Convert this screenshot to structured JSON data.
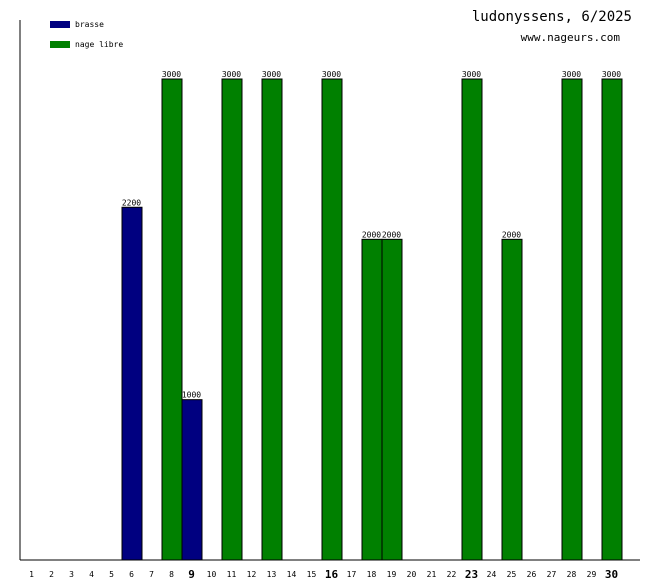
{
  "chart_data": {
    "type": "bar",
    "title": "ludonyssens, 6/2025",
    "subtitle": "www.nageurs.com",
    "x": [
      1,
      2,
      3,
      4,
      5,
      6,
      7,
      8,
      9,
      10,
      11,
      12,
      13,
      14,
      15,
      16,
      17,
      18,
      19,
      20,
      21,
      22,
      23,
      24,
      25,
      26,
      27,
      28,
      29,
      30
    ],
    "bold_ticks": [
      9,
      16,
      23,
      30
    ],
    "ylim": [
      0,
      3000
    ],
    "grid": false,
    "legend_position": "top-left",
    "series": [
      {
        "name": "brasse",
        "color": "#000080",
        "points": [
          {
            "day": 6,
            "value": 2200
          },
          {
            "day": 9,
            "value": 1000
          }
        ]
      },
      {
        "name": "nage libre",
        "color": "#008000",
        "points": [
          {
            "day": 8,
            "value": 3000
          },
          {
            "day": 11,
            "value": 3000
          },
          {
            "day": 13,
            "value": 3000
          },
          {
            "day": 16,
            "value": 3000
          },
          {
            "day": 18,
            "value": 2000
          },
          {
            "day": 19,
            "value": 2000
          },
          {
            "day": 23,
            "value": 3000
          },
          {
            "day": 25,
            "value": 2000
          },
          {
            "day": 28,
            "value": 3000
          },
          {
            "day": 30,
            "value": 3000
          }
        ]
      }
    ]
  }
}
